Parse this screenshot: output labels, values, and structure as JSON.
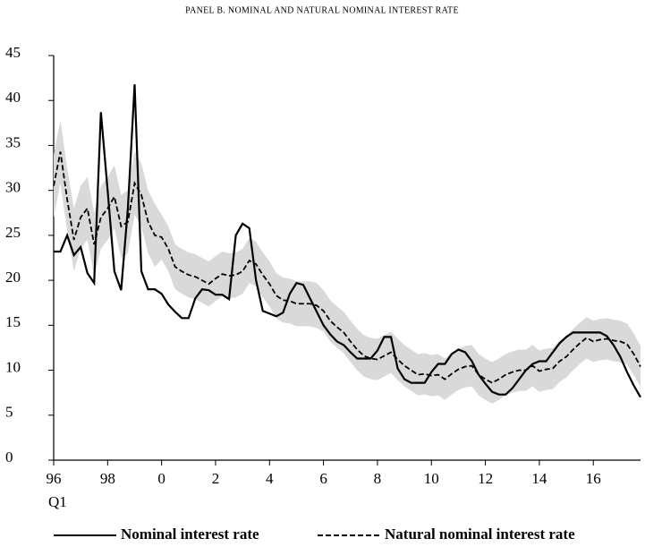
{
  "chart_data": {
    "type": "line",
    "title": "PANEL B. NOMINAL AND NATURAL NOMINAL INTEREST RATE",
    "x_note": "Q1",
    "x": [
      1996,
      1996.25,
      1996.5,
      1996.75,
      1997,
      1997.25,
      1997.5,
      1997.75,
      1998,
      1998.25,
      1998.5,
      1998.75,
      1999,
      1999.25,
      1999.5,
      1999.75,
      2000,
      2000.25,
      2000.5,
      2000.75,
      2001,
      2001.25,
      2001.5,
      2001.75,
      2002,
      2002.25,
      2002.5,
      2002.75,
      2003,
      2003.25,
      2003.5,
      2003.75,
      2004,
      2004.25,
      2004.5,
      2004.75,
      2005,
      2005.25,
      2005.5,
      2005.75,
      2006,
      2006.25,
      2006.5,
      2006.75,
      2007,
      2007.25,
      2007.5,
      2007.75,
      2008,
      2008.25,
      2008.5,
      2008.75,
      2009,
      2009.25,
      2009.5,
      2009.75,
      2010,
      2010.25,
      2010.5,
      2010.75,
      2011,
      2011.25,
      2011.5,
      2011.75,
      2012,
      2012.25,
      2012.5,
      2012.75,
      2013,
      2013.25,
      2013.5,
      2013.75,
      2014,
      2014.25,
      2014.5,
      2014.75,
      2015,
      2015.25,
      2015.5,
      2015.75,
      2016,
      2016.25,
      2016.5,
      2016.75,
      2017,
      2017.25,
      2017.5,
      2017.75
    ],
    "series": [
      {
        "name": "Nominal interest rate",
        "color": "#000000",
        "dashed": false,
        "values": [
          23.2,
          23.2,
          25,
          22.8,
          23.7,
          20.8,
          19.7,
          38.7,
          30,
          21,
          18.9,
          28,
          41.8,
          21,
          19,
          19,
          18.5,
          17.3,
          16.5,
          15.8,
          15.8,
          18,
          19,
          18.9,
          18.4,
          18.4,
          17.9,
          25,
          26.3,
          25.8,
          20,
          16.6,
          16.3,
          16,
          16.4,
          18.5,
          19.7,
          19.5,
          18,
          16.5,
          15,
          14,
          13.2,
          12.8,
          12,
          11.3,
          11.3,
          11.3,
          12.2,
          13.7,
          13.7,
          10.2,
          9,
          8.6,
          8.6,
          8.6,
          9.8,
          10.7,
          10.7,
          11.8,
          12.3,
          12,
          11,
          9.5,
          8.5,
          7.6,
          7.3,
          7.3,
          8,
          9,
          10,
          10.7,
          11,
          11,
          12,
          13,
          13.7,
          14.2,
          14.2,
          14.2,
          14.2,
          14.2,
          13.8,
          12.8,
          11.5,
          9.8,
          8.3,
          7
        ]
      },
      {
        "name": "Natural nominal interest rate",
        "color": "#000000",
        "dashed": true,
        "values": [
          30.5,
          34.3,
          29,
          24.5,
          27,
          28,
          24,
          27,
          28,
          29.3,
          26,
          26.5,
          30.8,
          29.5,
          26.5,
          25,
          24.8,
          23.5,
          21.5,
          21,
          20.6,
          20.4,
          20,
          19.6,
          20.2,
          20.7,
          20.5,
          20.6,
          21,
          22.2,
          21.8,
          20.6,
          19.6,
          18.3,
          17.8,
          17.7,
          17.4,
          17.4,
          17.4,
          17.2,
          16.6,
          15.5,
          14.8,
          14.2,
          13.2,
          12.3,
          11.6,
          11.3,
          11.2,
          11.6,
          12,
          11.2,
          10.5,
          10,
          9.5,
          9.6,
          9.4,
          9.5,
          9,
          9.6,
          10.1,
          10.4,
          10.5,
          9.5,
          9,
          8.6,
          9,
          9.5,
          9.8,
          10,
          10,
          10.5,
          9.9,
          10.1,
          10.2,
          11,
          11.5,
          12.3,
          13,
          13.6,
          13.2,
          13.4,
          13.5,
          13.3,
          13.2,
          12.9,
          11.8,
          10.4
        ]
      }
    ],
    "band": {
      "color": "#d9d9d9",
      "lower": [
        27,
        30.8,
        25.5,
        21,
        23.5,
        24.5,
        20.5,
        23.5,
        24.5,
        25.8,
        22.5,
        23,
        27.3,
        26,
        23,
        21.5,
        22.3,
        21,
        19,
        18.5,
        18.1,
        17.9,
        17.5,
        17.1,
        17.7,
        18.2,
        18,
        18.1,
        18.5,
        19.7,
        19.3,
        18.1,
        17.1,
        15.8,
        15.3,
        15.2,
        14.9,
        14.9,
        14.9,
        14.7,
        14.3,
        13.2,
        12.5,
        11.9,
        10.9,
        10,
        9.3,
        9,
        8.9,
        9.3,
        9.7,
        8.9,
        8.2,
        7.7,
        7.2,
        7.3,
        7.1,
        7.2,
        6.7,
        7.3,
        7.8,
        8.1,
        8.2,
        7.2,
        6.7,
        6.3,
        6.7,
        7.2,
        7.5,
        7.7,
        7.7,
        8.2,
        7.6,
        7.8,
        7.9,
        8.7,
        9.2,
        10,
        10.7,
        11.3,
        10.9,
        11.1,
        11.2,
        11,
        10.9,
        10.6,
        9.5,
        8.1
      ],
      "upper": [
        34,
        37.8,
        32.5,
        28,
        30.5,
        31.5,
        27.5,
        30.5,
        31.5,
        32.8,
        29.5,
        30,
        34.3,
        33,
        30,
        28.5,
        27.3,
        26,
        24,
        23.5,
        23.1,
        22.9,
        22.5,
        22.1,
        22.7,
        23.2,
        23,
        23.1,
        23.5,
        24.7,
        24.3,
        23.1,
        22.1,
        20.8,
        20.3,
        20.2,
        19.9,
        19.9,
        19.9,
        19.7,
        18.9,
        17.8,
        17.1,
        16.5,
        15.5,
        14.6,
        13.9,
        13.6,
        13.5,
        13.9,
        14.3,
        13.5,
        12.8,
        12.3,
        11.8,
        11.9,
        11.7,
        11.8,
        11.3,
        11.9,
        12.4,
        12.7,
        12.8,
        11.8,
        11.3,
        10.9,
        11.3,
        11.8,
        12.1,
        12.3,
        12.3,
        12.8,
        12.2,
        12.4,
        12.5,
        13.3,
        13.8,
        14.6,
        15.3,
        15.9,
        15.5,
        15.7,
        15.8,
        15.6,
        15.5,
        15.2,
        14.1,
        12.7
      ]
    },
    "xlim": [
      1996,
      2017.75
    ],
    "xticks": [
      {
        "value": 1996,
        "label": "96"
      },
      {
        "value": 1998,
        "label": "98"
      },
      {
        "value": 2000,
        "label": "0"
      },
      {
        "value": 2002,
        "label": "2"
      },
      {
        "value": 2004,
        "label": "4"
      },
      {
        "value": 2006,
        "label": "6"
      },
      {
        "value": 2008,
        "label": "8"
      },
      {
        "value": 2010,
        "label": "10"
      },
      {
        "value": 2012,
        "label": "12"
      },
      {
        "value": 2014,
        "label": "14"
      },
      {
        "value": 2016,
        "label": "16"
      }
    ],
    "ylim": [
      0,
      45
    ],
    "yticks": [
      0,
      5,
      10,
      15,
      20,
      25,
      30,
      35,
      40,
      45
    ],
    "legend": "bottom"
  }
}
